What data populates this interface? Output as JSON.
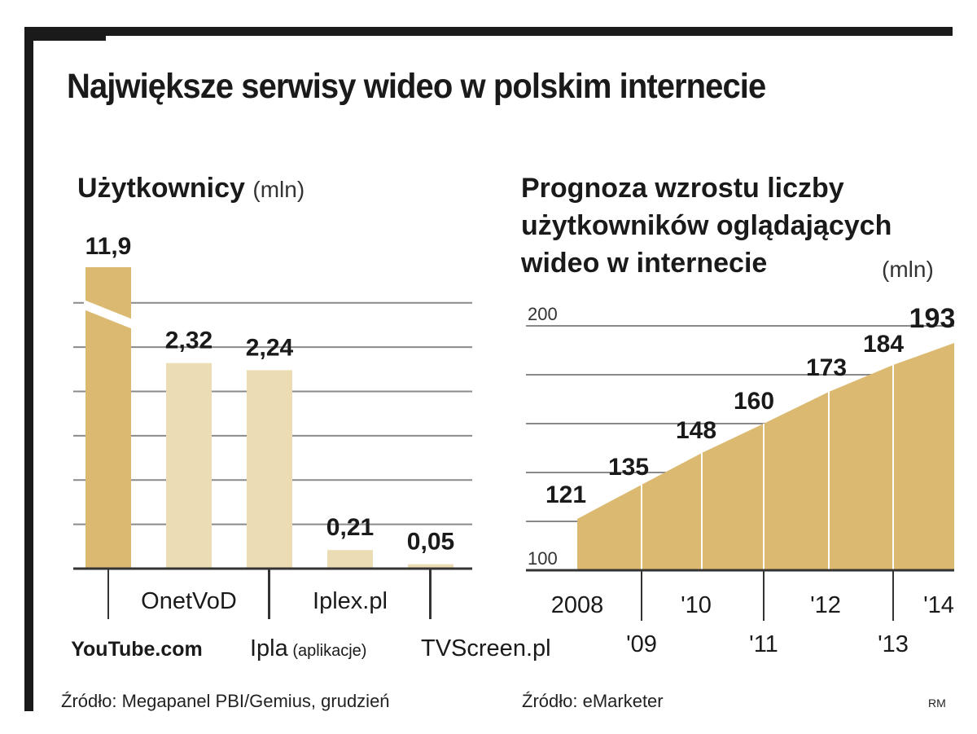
{
  "title": "Największe serwisy wideo w polskim internecie",
  "sources": {
    "left": "Źródło: Megapanel PBI/Gemius, grudzień",
    "right": "Źródło: eMarketer",
    "credit": "RM"
  },
  "chart_data": [
    {
      "type": "bar",
      "title": "Użytkownicy",
      "unit": "(mln)",
      "categories": [
        "YouTube.com",
        "OnetVoD",
        "Ipla",
        "Iplex.pl",
        "TVScreen.pl"
      ],
      "category_notes": [
        "",
        "",
        "(aplikacje)",
        "",
        ""
      ],
      "values": [
        11.9,
        2.32,
        2.24,
        0.21,
        0.05
      ],
      "value_labels": [
        "11,9",
        "2,32",
        "2,24",
        "0,21",
        "0,05"
      ],
      "axis_break": true,
      "ylim": [
        0,
        3.2
      ],
      "grid": true,
      "colors": {
        "highlight": "#dcb970",
        "bar": "#ecdcb3",
        "grid": "#8a8a8a"
      }
    },
    {
      "type": "area",
      "title": "Prognoza wzrostu liczby użytkowników oglądających wideo w internecie",
      "unit": "(mln)",
      "x": [
        "2008",
        "'09",
        "'10",
        "'11",
        "'12",
        "'13",
        "'14"
      ],
      "values": [
        121,
        135,
        148,
        160,
        173,
        184,
        193
      ],
      "ylim": [
        100,
        200
      ],
      "yticks": [
        "100",
        "200"
      ],
      "grid": true,
      "colors": {
        "area": "#dcb970",
        "grid": "#8a8a8a"
      }
    }
  ]
}
